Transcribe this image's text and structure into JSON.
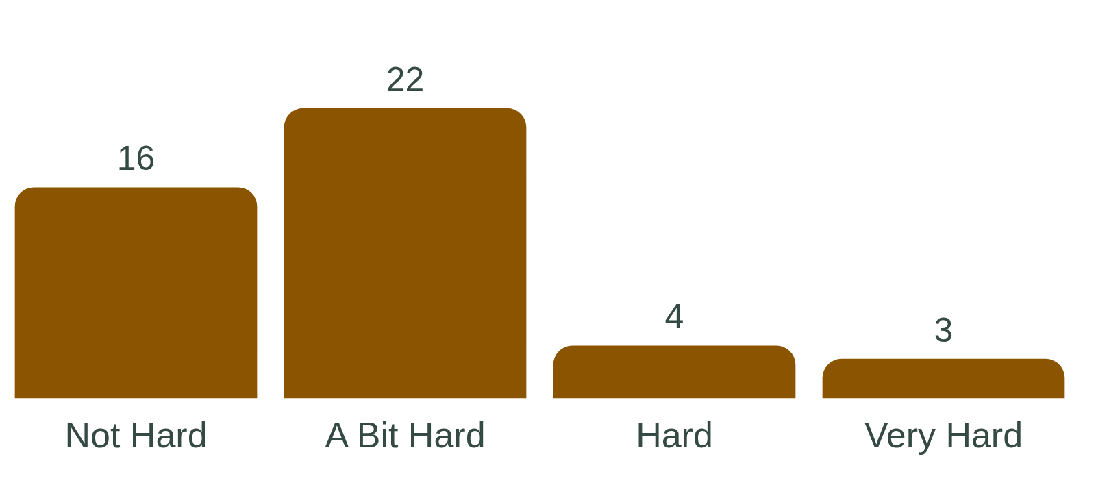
{
  "chart_data": {
    "type": "bar",
    "categories": [
      "Not Hard",
      "A Bit Hard",
      "Hard",
      "Very Hard"
    ],
    "values": [
      16,
      22,
      4,
      3
    ],
    "color": "#8b5400",
    "data_labels": true
  }
}
